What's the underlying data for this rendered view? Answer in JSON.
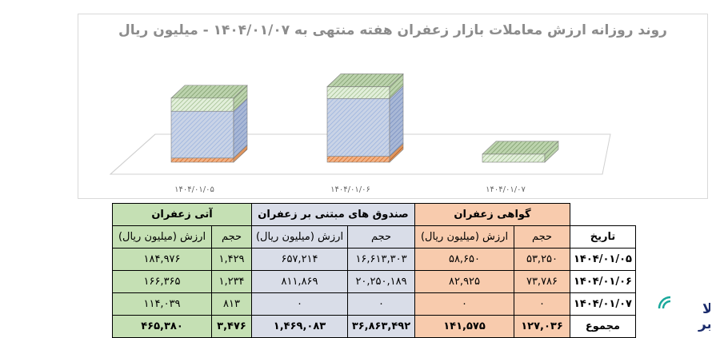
{
  "chart_data": {
    "type": "bar",
    "title": "روند روزانه ارزش معاملات بازار زعفران هفته منتهی به ۱۴۰۴/۰۱/۰۷ - میلیون ریال",
    "categories": [
      "۱۴۰۴/۰۱/۰۵",
      "۱۴۰۴/۰۱/۰۶",
      "۱۴۰۴/۰۱/۰۷"
    ],
    "stacked": true,
    "series": [
      {
        "name": "گواهی زعفران",
        "values": [
          58650,
          82925,
          0
        ],
        "color": "#ed7d31"
      },
      {
        "name": "صندوق های مبتنی بر زعفران",
        "values": [
          657214,
          811869,
          0
        ],
        "color": "#8faadc"
      },
      {
        "name": "آتی زعفران",
        "values": [
          184976,
          166365,
          114039
        ],
        "color": "#a9d18e"
      }
    ],
    "grid": false,
    "legend": "none",
    "ylim": [
      0,
      1100000
    ]
  },
  "table": {
    "groups": {
      "certificate": "گواهی زعفران",
      "fund": "صندوق های مبتنی بر زعفران",
      "futures": "آتی زعفران"
    },
    "date_header": "تاریخ",
    "volume_label": "حجم",
    "value_label": "ارزش (میلیون ریال)",
    "rows": [
      {
        "date": "۱۴۰۴/۰۱/۰۵",
        "cert_vol": "۵۳,۲۵۰",
        "cert_val": "۵۸,۶۵۰",
        "fund_vol": "۱۶,۶۱۳,۳۰۳",
        "fund_val": "۶۵۷,۲۱۴",
        "fut_vol": "۱,۴۲۹",
        "fut_val": "۱۸۴,۹۷۶"
      },
      {
        "date": "۱۴۰۴/۰۱/۰۶",
        "cert_vol": "۷۳,۷۸۶",
        "cert_val": "۸۲,۹۲۵",
        "fund_vol": "۲۰,۲۵۰,۱۸۹",
        "fund_val": "۸۱۱,۸۶۹",
        "fut_vol": "۱,۲۳۴",
        "fut_val": "۱۶۶,۳۶۵"
      },
      {
        "date": "۱۴۰۴/۰۱/۰۷",
        "cert_vol": "۰",
        "cert_val": "۰",
        "fund_vol": "۰",
        "fund_val": "۰",
        "fut_vol": "۸۱۳",
        "fut_val": "۱۱۴,۰۳۹"
      }
    ],
    "total": {
      "label": "مجموع",
      "cert_vol": "۱۲۷,۰۳۶",
      "cert_val": "۱۴۱,۵۷۵",
      "fund_vol": "۳۶,۸۶۳,۴۹۲",
      "fund_val": "۱,۴۶۹,۰۸۳",
      "fut_vol": "۳,۴۷۶",
      "fut_val": "۴۶۵,۳۸۰"
    }
  },
  "logo": {
    "line1": "کالا",
    "line2": "خبر",
    "color": "#1a2b6b",
    "accent": "#1aa89c"
  }
}
